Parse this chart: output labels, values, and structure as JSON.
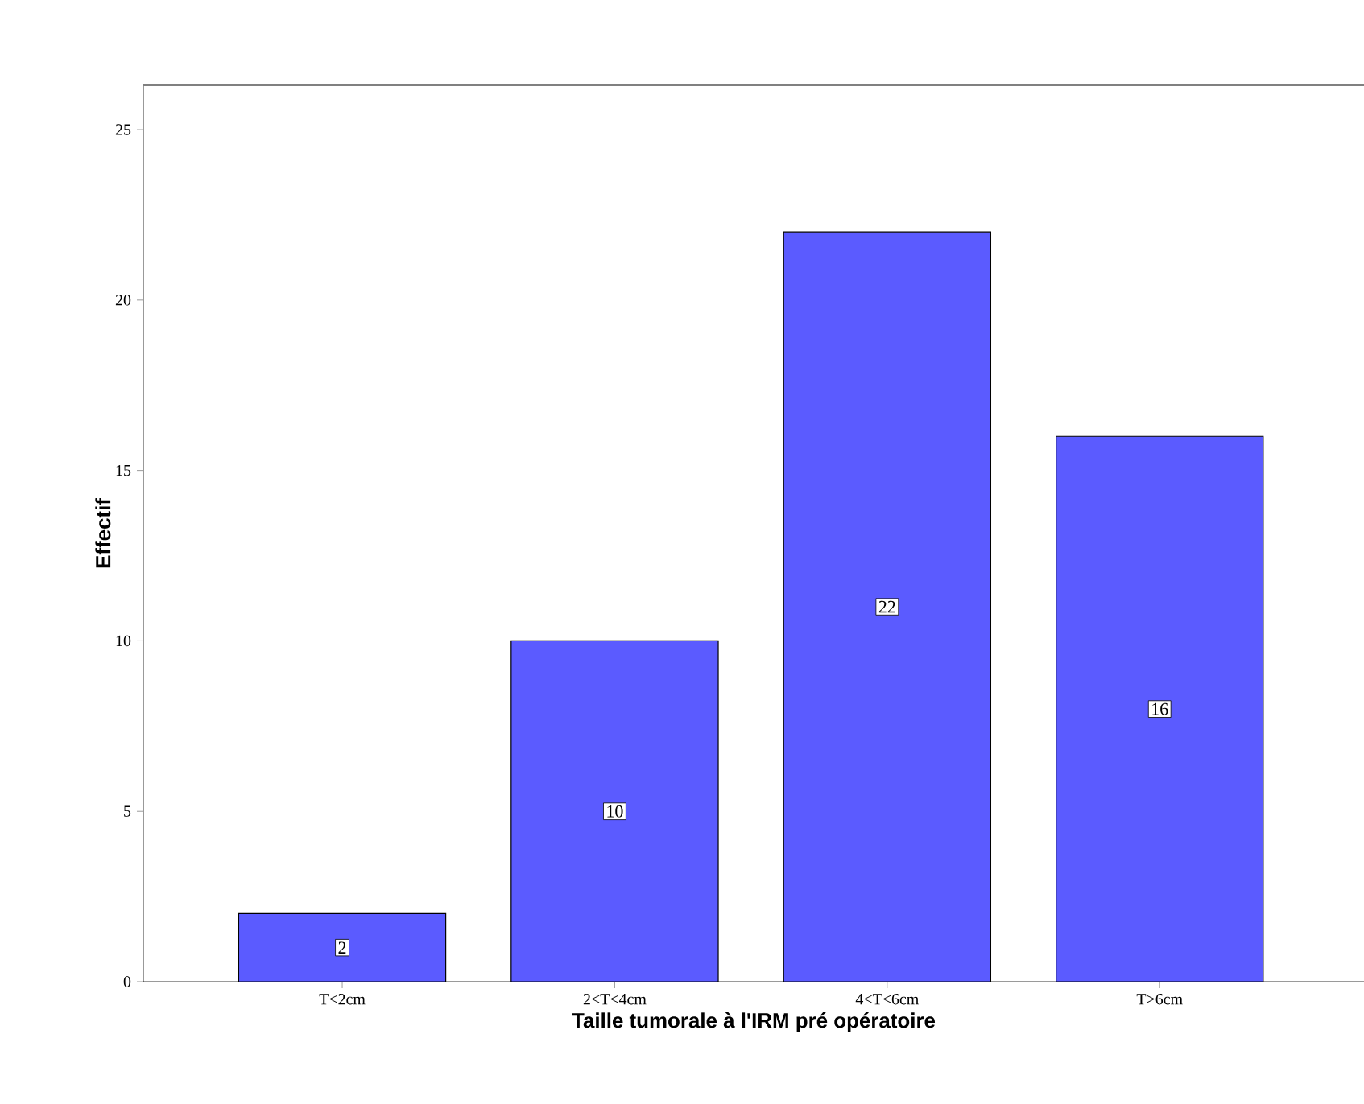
{
  "chart_data": {
    "type": "bar",
    "xlabel": "Taille tumorale à l'IRM pré opératoire",
    "ylabel": "Effectif",
    "categories": [
      "T<2cm",
      "2<T<4cm",
      "4<T<6cm",
      "T>6cm"
    ],
    "values": [
      2,
      10,
      22,
      16
    ],
    "color": "#5b5bff",
    "ylim": [
      0,
      26.3
    ],
    "yticks": [
      0,
      5,
      10,
      15,
      20,
      25
    ],
    "data_labels": true
  }
}
